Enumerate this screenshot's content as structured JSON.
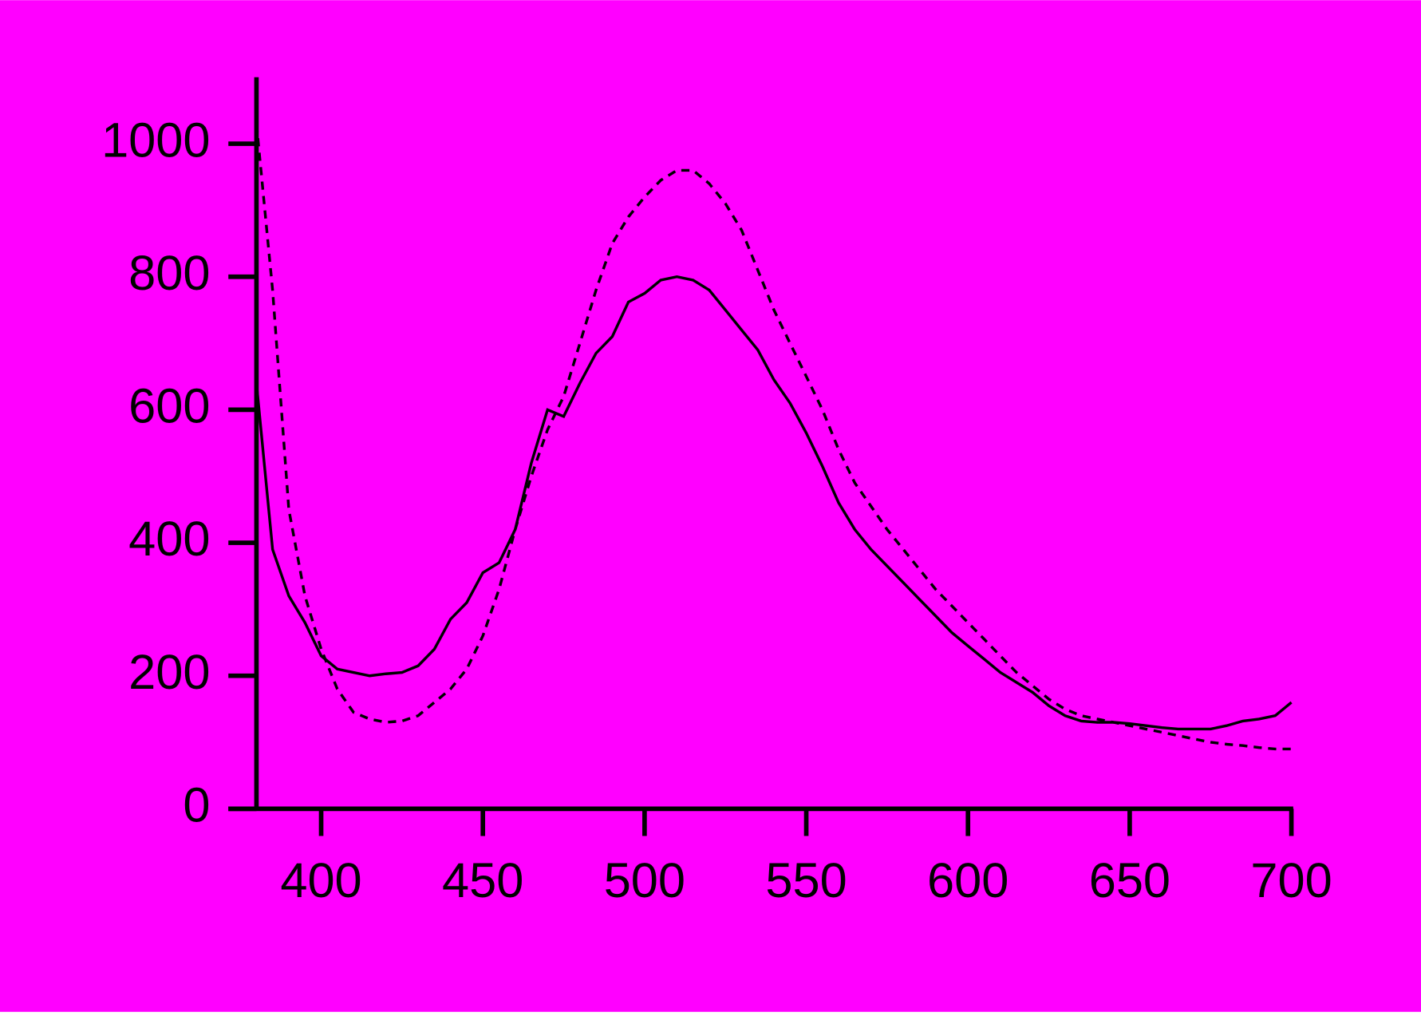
{
  "chart_data": {
    "type": "line",
    "background": "#ff00ff",
    "x": [
      380,
      385,
      390,
      395,
      400,
      405,
      410,
      415,
      420,
      425,
      430,
      435,
      440,
      445,
      450,
      455,
      460,
      465,
      470,
      475,
      480,
      485,
      490,
      495,
      500,
      505,
      510,
      515,
      520,
      525,
      530,
      535,
      540,
      545,
      550,
      555,
      560,
      565,
      570,
      575,
      580,
      585,
      590,
      595,
      600,
      605,
      610,
      615,
      620,
      625,
      630,
      635,
      640,
      645,
      650,
      655,
      660,
      665,
      670,
      675,
      680,
      685,
      690,
      695,
      700
    ],
    "series": [
      {
        "color": "#000000",
        "line_style": "solid",
        "values": [
          640,
          390,
          320,
          280,
          230,
          210,
          205,
          200,
          203,
          205,
          215,
          240,
          285,
          310,
          355,
          370,
          420,
          520,
          600,
          590,
          640,
          685,
          710,
          762,
          775,
          795,
          800,
          795,
          780,
          750,
          720,
          690,
          645,
          610,
          565,
          515,
          460,
          420,
          390,
          365,
          340,
          315,
          290,
          265,
          245,
          225,
          205,
          190,
          175,
          155,
          140,
          132,
          130,
          130,
          128,
          125,
          122,
          120,
          120,
          120,
          125,
          132,
          135,
          140,
          160
        ]
      },
      {
        "color": "#000000",
        "line_style": "dashed",
        "values": [
          1030,
          780,
          450,
          320,
          240,
          180,
          145,
          135,
          130,
          132,
          140,
          160,
          180,
          210,
          260,
          330,
          420,
          500,
          570,
          620,
          700,
          780,
          850,
          890,
          920,
          945,
          960,
          960,
          940,
          910,
          870,
          810,
          750,
          700,
          650,
          600,
          540,
          490,
          455,
          420,
          390,
          360,
          330,
          305,
          280,
          255,
          230,
          205,
          185,
          165,
          150,
          140,
          135,
          130,
          125,
          120,
          115,
          110,
          105,
          100,
          97,
          95,
          92,
          90,
          90
        ]
      }
    ],
    "xlim": [
      380,
      700
    ],
    "xticks": [
      400,
      450,
      500,
      550,
      600,
      650,
      700
    ],
    "ylim": [
      0,
      1100
    ],
    "yticks": [
      0,
      200,
      400,
      600,
      800,
      1000
    ]
  }
}
